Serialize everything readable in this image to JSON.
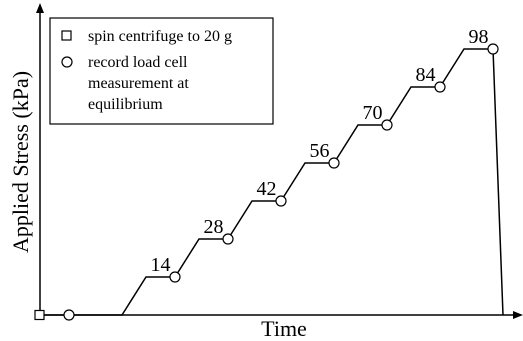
{
  "chart_data": {
    "type": "line",
    "title": "",
    "xlabel": "Time",
    "ylabel": "Applied Stress (kPa)",
    "x_ticks_shown": false,
    "y_ticks_shown": false,
    "grid": false,
    "legend_position": "top-left",
    "legend": [
      {
        "marker": "square",
        "label": "spin centrifuge to 20 g"
      },
      {
        "marker": "circle",
        "label": "record load cell measurement at equilibrium",
        "lines": [
          "record load cell",
          "measurement at",
          "equilibrium"
        ]
      }
    ],
    "series": [
      {
        "steps": [
          0,
          14,
          28,
          42,
          56,
          70,
          84,
          98
        ],
        "step_labels": [
          "14",
          "28",
          "42",
          "56",
          "70",
          "84",
          "98"
        ],
        "end_value": 0
      }
    ]
  }
}
